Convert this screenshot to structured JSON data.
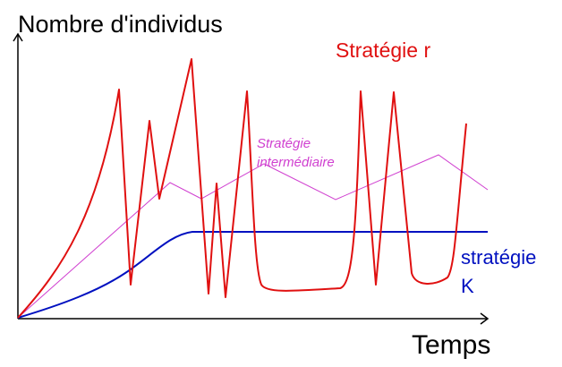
{
  "axes": {
    "y_label": "Nombre d'individus",
    "x_label": "Temps"
  },
  "curves": [
    {
      "label": "Stratégie r"
    },
    {
      "label_lines": [
        "Stratégie",
        "intermédiaire"
      ]
    },
    {
      "label_lines": [
        "stratégie",
        "K"
      ]
    }
  ]
}
